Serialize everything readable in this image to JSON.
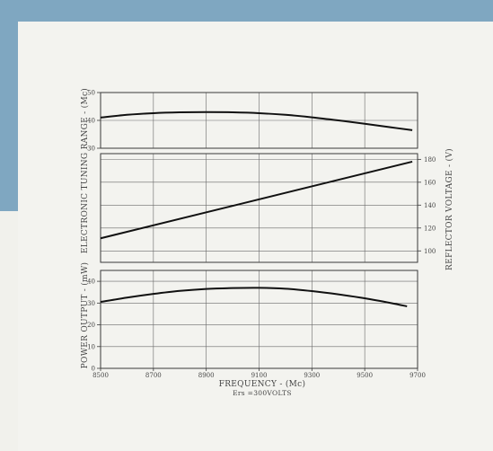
{
  "chart_data": [
    {
      "type": "line",
      "ylabel": "ELECTRONIC TUNING RANGE - (Mc)",
      "ylim": [
        30,
        50
      ],
      "yticks": [
        "30",
        "40",
        "50"
      ],
      "xlim": [
        8500,
        9700
      ],
      "series": [
        {
          "x": [
            8500,
            8600,
            8700,
            8800,
            8900,
            9000,
            9100,
            9200,
            9300,
            9400,
            9500,
            9600,
            9680
          ],
          "values": [
            41,
            42,
            42.6,
            42.9,
            43,
            42.9,
            42.6,
            42,
            41.1,
            40,
            38.8,
            37.5,
            36.5
          ]
        }
      ]
    },
    {
      "type": "line",
      "ylabel": "REFLECTOR VOLTAGE - (V)",
      "ylim": [
        90,
        185
      ],
      "yticks": [
        "100",
        "120",
        "140",
        "160",
        "180"
      ],
      "xlim": [
        8500,
        9700
      ],
      "series": [
        {
          "x": [
            8500,
            9680
          ],
          "values": [
            111,
            178
          ]
        }
      ]
    },
    {
      "type": "line",
      "ylabel": "POWER OUTPUT - (mW)",
      "ylim": [
        0,
        45
      ],
      "yticks": [
        "0",
        "10",
        "20",
        "30",
        "40"
      ],
      "xlabel": "FREQUENCY - (Mc)",
      "xlim": [
        8500,
        9700
      ],
      "xticks": [
        "8500",
        "8700",
        "8900",
        "9100",
        "9300",
        "9500",
        "9700"
      ],
      "note": "Ers =300VOLTS",
      "series": [
        {
          "x": [
            8500,
            8600,
            8700,
            8800,
            8900,
            9000,
            9100,
            9200,
            9300,
            9400,
            9500,
            9600,
            9660
          ],
          "values": [
            30.5,
            32.5,
            34.2,
            35.6,
            36.5,
            36.9,
            37,
            36.6,
            35.5,
            34,
            32.2,
            30,
            28.5
          ]
        }
      ]
    }
  ]
}
